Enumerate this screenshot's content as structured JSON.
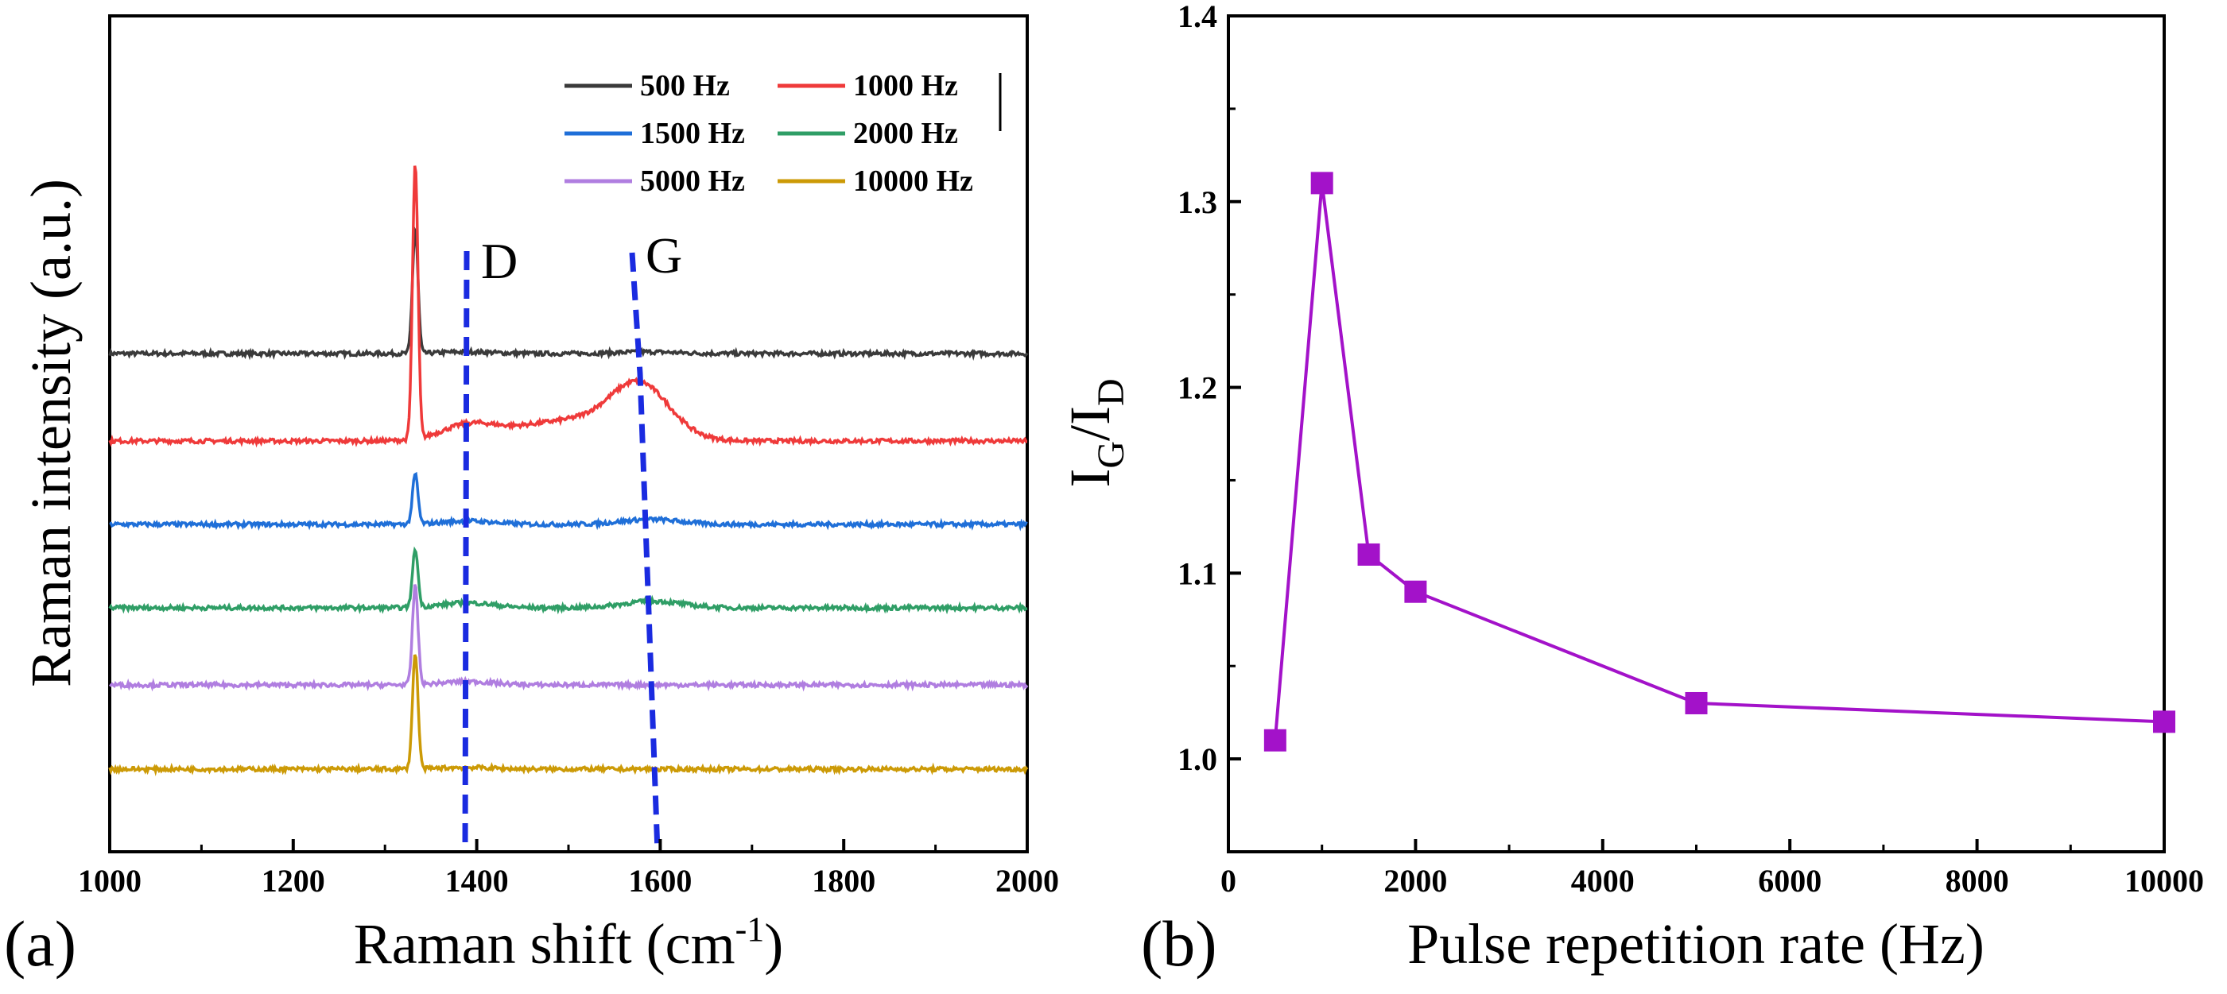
{
  "chart_data": [
    {
      "panel": "(a)",
      "type": "line",
      "xlabel": "Raman shift (cm",
      "xlabel_sup": "-1",
      "xlabel_end": ")",
      "ylabel": "Raman intensity (a.u.)",
      "xlim": [
        1000,
        2000
      ],
      "xticks": [
        "1000",
        "1200",
        "1400",
        "1600",
        "1800",
        "2000"
      ],
      "peak_labels": [
        {
          "text": "D",
          "x": 1390
        },
        {
          "text": "G",
          "x": 1580
        }
      ],
      "series": [
        {
          "name": "500 Hz",
          "color": "#3a3a3a",
          "baseline": 0.0,
          "sharp": 0.75,
          "d": 0.01,
          "g": 0.01,
          "offset": 4,
          "gx": 1585
        },
        {
          "name": "1000 Hz",
          "color": "#ef3a3a",
          "baseline": 0.0,
          "sharp": 1.65,
          "d": 0.08,
          "g": 0.3,
          "offset": 3,
          "gx": 1578
        },
        {
          "name": "1500 Hz",
          "color": "#1f6fd8",
          "baseline": 0.0,
          "sharp": 0.3,
          "d": 0.02,
          "g": 0.03,
          "offset": 2,
          "gx": 1590
        },
        {
          "name": "2000 Hz",
          "color": "#2f9e66",
          "baseline": 0.0,
          "sharp": 0.35,
          "d": 0.03,
          "g": 0.04,
          "offset": 1,
          "gx": 1592
        },
        {
          "name": "5000 Hz",
          "color": "#b07ee0",
          "baseline": 0.0,
          "sharp": 0.6,
          "d": 0.02,
          "g": 0.0,
          "offset": 0,
          "gx": 1595
        },
        {
          "name": "10000 Hz",
          "color": "#cc9a06",
          "baseline": 0.0,
          "sharp": 0.7,
          "d": 0.01,
          "g": 0.0,
          "offset": -1,
          "gx": 1595
        }
      ]
    },
    {
      "panel": "(b)",
      "type": "line",
      "xlabel": "Pulse repetition rate (Hz)",
      "ylabel_main": "I",
      "ylabel_sub1": "G",
      "ylabel_slash": "/I",
      "ylabel_sub2": "D",
      "xlim": [
        0,
        10000
      ],
      "ylim": [
        0.95,
        1.4
      ],
      "xticks": [
        "0",
        "2000",
        "4000",
        "6000",
        "8000",
        "10000"
      ],
      "yticks": [
        "1.0",
        "1.1",
        "1.2",
        "1.3",
        "1.4"
      ],
      "color": "#a312c9",
      "x": [
        500,
        1000,
        1500,
        2000,
        5000,
        10000
      ],
      "y": [
        1.01,
        1.31,
        1.11,
        1.09,
        1.03,
        1.02
      ]
    }
  ]
}
